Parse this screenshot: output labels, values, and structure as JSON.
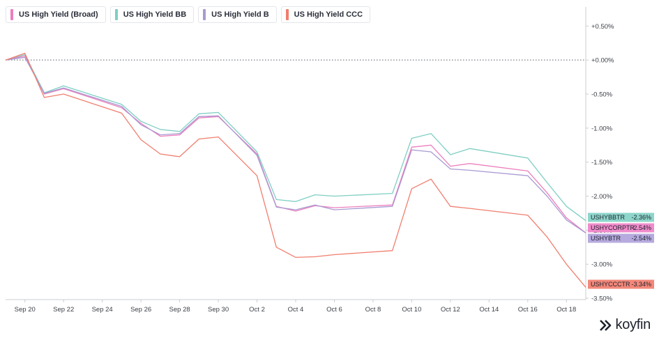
{
  "colors": {
    "broad": "#ec7ebd",
    "bb": "#7fcfc3",
    "b": "#a89ad2",
    "ccc": "#f07e6e"
  },
  "legend": [
    {
      "label": "US High Yield (Broad)",
      "color": "#ec7ebd"
    },
    {
      "label": "US High Yield BB",
      "color": "#7fcfc3"
    },
    {
      "label": "US High Yield B",
      "color": "#a89ad2"
    },
    {
      "label": "US High Yield CCC",
      "color": "#f07e6e"
    }
  ],
  "logo": {
    "text": "koyfin",
    "icon": "koyfin-logo-icon"
  },
  "chart_data": {
    "type": "line",
    "x": [
      "Sep 19",
      "Sep 20",
      "Sep 21",
      "Sep 22",
      "Sep 25",
      "Sep 26",
      "Sep 27",
      "Sep 28",
      "Sep 29",
      "Sep 30",
      "Oct 2",
      "Oct 3",
      "Oct 4",
      "Oct 5",
      "Oct 6",
      "Oct 9",
      "Oct 10",
      "Oct 11",
      "Oct 12",
      "Oct 13",
      "Oct 16",
      "Oct 17",
      "Oct 18",
      "Oct 19"
    ],
    "x_ticks": [
      "Sep 20",
      "Sep 22",
      "Sep 24",
      "Sep 26",
      "Sep 28",
      "Sep 30",
      "Oct 2",
      "Oct 4",
      "Oct 6",
      "Oct 8",
      "Oct 10",
      "Oct 12",
      "Oct 14",
      "Oct 16",
      "Oct 18"
    ],
    "x_range": [
      "Sep 19",
      "Oct 19"
    ],
    "y_ticks": [
      0.5,
      0,
      -0.5,
      -1,
      -1.5,
      -2,
      -2.5,
      -3,
      -3.5
    ],
    "y_tick_labels": [
      "+0.50%",
      "+0.00%",
      "-0.50%",
      "-1.00%",
      "-1.50%",
      "-2.00%",
      "-2.50%",
      "-3.00%",
      "-3.50%"
    ],
    "ylim": [
      -3.52,
      0.78
    ],
    "y_unit": "%",
    "reference_line": 0,
    "series": [
      {
        "key": "bb",
        "name": "US High Yield BB",
        "ticker": "USHYBBTR",
        "last_label": "-2.36%",
        "values": [
          0,
          0.08,
          -0.48,
          -0.38,
          -0.65,
          -0.9,
          -1.02,
          -1.05,
          -0.79,
          -0.77,
          -1.35,
          -2.05,
          -2.08,
          -1.98,
          -2.0,
          -1.96,
          -1.15,
          -1.08,
          -1.39,
          -1.3,
          -1.44,
          -1.8,
          -2.15,
          -2.36
        ]
      },
      {
        "key": "broad",
        "name": "US High Yield (Broad)",
        "ticker": "USHYCORPTR",
        "last_label": "-2.54%",
        "values": [
          0,
          0.06,
          -0.5,
          -0.42,
          -0.7,
          -0.93,
          -1.12,
          -1.1,
          -0.85,
          -0.83,
          -1.38,
          -2.15,
          -2.22,
          -2.14,
          -2.17,
          -2.13,
          -1.28,
          -1.25,
          -1.56,
          -1.52,
          -1.63,
          -1.95,
          -2.32,
          -2.54
        ]
      },
      {
        "key": "b",
        "name": "US High Yield B",
        "ticker": "USHYBTR",
        "last_label": "-2.54%",
        "values": [
          0,
          0.04,
          -0.49,
          -0.41,
          -0.68,
          -0.95,
          -1.1,
          -1.08,
          -0.83,
          -0.82,
          -1.4,
          -2.16,
          -2.2,
          -2.13,
          -2.2,
          -2.15,
          -1.32,
          -1.35,
          -1.6,
          -1.62,
          -1.7,
          -2.0,
          -2.35,
          -2.54
        ]
      },
      {
        "key": "ccc",
        "name": "US High Yield CCC",
        "ticker": "USHYCCCTR",
        "last_label": "-3.34%",
        "values": [
          0,
          0.1,
          -0.55,
          -0.5,
          -0.78,
          -1.17,
          -1.38,
          -1.42,
          -1.16,
          -1.13,
          -1.7,
          -2.75,
          -2.9,
          -2.89,
          -2.86,
          -2.8,
          -1.89,
          -1.75,
          -2.15,
          -2.18,
          -2.28,
          -2.6,
          -3.0,
          -3.34
        ]
      }
    ],
    "tags": [
      {
        "ticker": "USHYBBTR",
        "value": "-2.36%",
        "color": "#8ed6cb"
      },
      {
        "ticker": "USHYCORPTR",
        "value": "-2.54%",
        "color": "#f08ccb"
      },
      {
        "ticker": "USHYBTR",
        "value": "-2.54%",
        "color": "#b6aade"
      },
      {
        "ticker": "USHYCCCTR",
        "value": "-3.34%",
        "color": "#f3887a"
      }
    ],
    "grid": false,
    "legend_position": "top-left"
  }
}
